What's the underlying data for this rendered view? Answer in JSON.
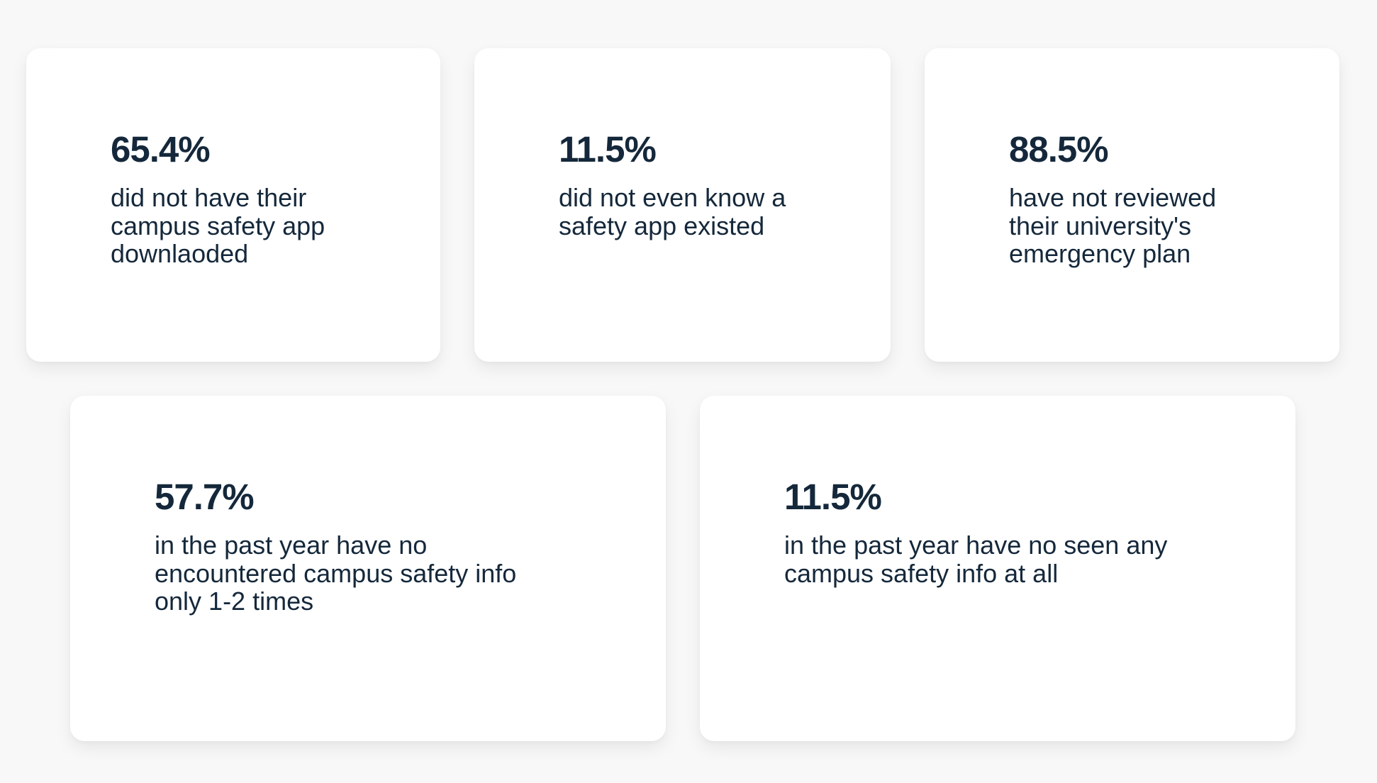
{
  "stats": [
    {
      "value": "65.4%",
      "description_lines": [
        "did not have their",
        "campus safety app",
        "downlaoded"
      ]
    },
    {
      "value": "11.5%",
      "description_lines": [
        "did not even know a",
        "safety app existed"
      ]
    },
    {
      "value": "88.5%",
      "description_lines": [
        "have not reviewed",
        "their university's",
        "emergency plan"
      ]
    },
    {
      "value": "57.7%",
      "description_lines": [
        "in the past year have no",
        "encountered campus safety info",
        "only 1-2 times"
      ]
    },
    {
      "value": "11.5%",
      "description_lines": [
        "in the past year have no seen any",
        "campus safety info at all"
      ]
    }
  ],
  "colors": {
    "background": "#f8f8f8",
    "card": "#ffffff",
    "text": "#15283b"
  }
}
